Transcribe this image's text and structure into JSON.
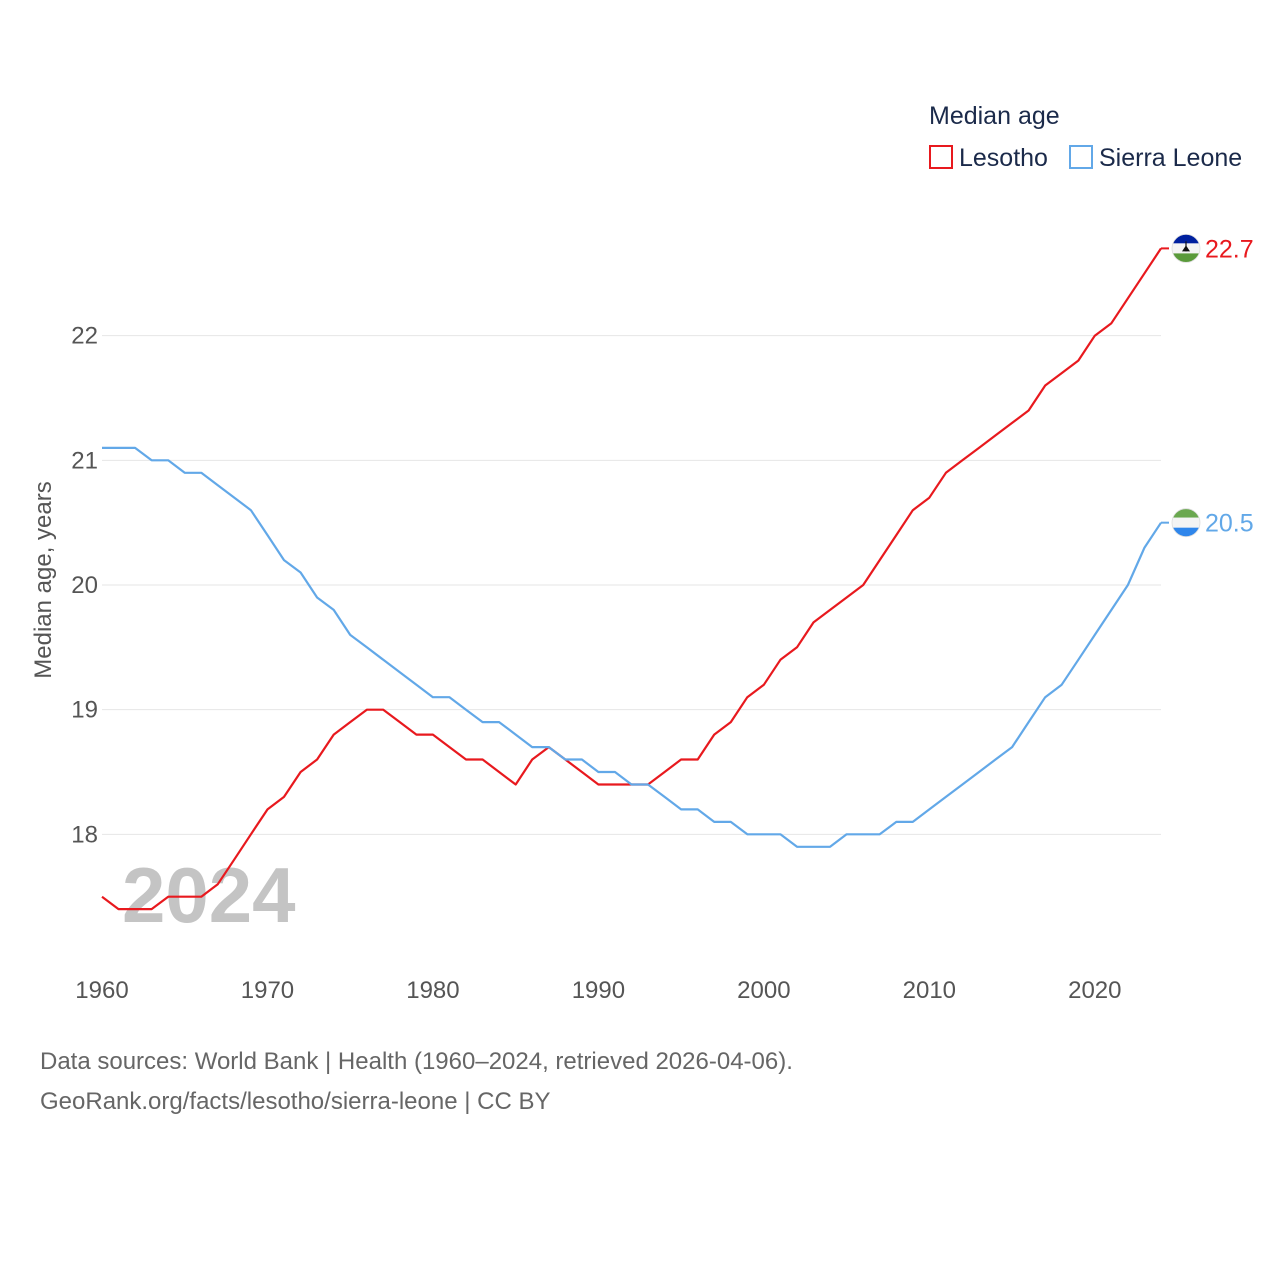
{
  "colors": {
    "lesotho": "#e8191e",
    "sierra_leone": "#62a8e8",
    "grid": "#e6e6e6"
  },
  "watermark_year": "2024",
  "chart_data": {
    "type": "line",
    "title": "Median age",
    "xlabel": "",
    "ylabel": "Median age, years",
    "xlim": [
      1960,
      2024
    ],
    "ylim": [
      17,
      23
    ],
    "x_ticks": [
      1960,
      1970,
      1980,
      1990,
      2000,
      2010,
      2020
    ],
    "y_ticks": [
      18,
      19,
      20,
      21,
      22
    ],
    "legend": {
      "title": "Median age",
      "position": "top-right"
    },
    "x": [
      1960,
      1961,
      1962,
      1963,
      1964,
      1965,
      1966,
      1967,
      1968,
      1969,
      1970,
      1971,
      1972,
      1973,
      1974,
      1975,
      1976,
      1977,
      1978,
      1979,
      1980,
      1981,
      1982,
      1983,
      1984,
      1985,
      1986,
      1987,
      1988,
      1989,
      1990,
      1991,
      1992,
      1993,
      1994,
      1995,
      1996,
      1997,
      1998,
      1999,
      2000,
      2001,
      2002,
      2003,
      2004,
      2005,
      2006,
      2007,
      2008,
      2009,
      2010,
      2011,
      2012,
      2013,
      2014,
      2015,
      2016,
      2017,
      2018,
      2019,
      2020,
      2021,
      2022,
      2023,
      2024
    ],
    "series": [
      {
        "name": "Lesotho",
        "color": "#e8191e",
        "flag": "lesotho-flag",
        "end_label": "22.7",
        "values": [
          17.5,
          17.4,
          17.4,
          17.4,
          17.5,
          17.5,
          17.5,
          17.6,
          17.8,
          18.0,
          18.2,
          18.3,
          18.5,
          18.6,
          18.8,
          18.9,
          19.0,
          19.0,
          18.9,
          18.8,
          18.8,
          18.7,
          18.6,
          18.6,
          18.5,
          18.4,
          18.6,
          18.7,
          18.6,
          18.5,
          18.4,
          18.4,
          18.4,
          18.4,
          18.5,
          18.6,
          18.6,
          18.8,
          18.9,
          19.1,
          19.2,
          19.4,
          19.5,
          19.7,
          19.8,
          19.9,
          20.0,
          20.2,
          20.4,
          20.6,
          20.7,
          20.9,
          21.0,
          21.1,
          21.2,
          21.3,
          21.4,
          21.6,
          21.7,
          21.8,
          22.0,
          22.1,
          22.3,
          22.5,
          22.7
        ]
      },
      {
        "name": "Sierra Leone",
        "color": "#62a8e8",
        "flag": "sierra-leone-flag",
        "end_label": "20.5",
        "values": [
          21.1,
          21.1,
          21.1,
          21.0,
          21.0,
          20.9,
          20.9,
          20.8,
          20.7,
          20.6,
          20.4,
          20.2,
          20.1,
          19.9,
          19.8,
          19.6,
          19.5,
          19.4,
          19.3,
          19.2,
          19.1,
          19.1,
          19.0,
          18.9,
          18.9,
          18.8,
          18.7,
          18.7,
          18.6,
          18.6,
          18.5,
          18.5,
          18.4,
          18.4,
          18.3,
          18.2,
          18.2,
          18.1,
          18.1,
          18.0,
          18.0,
          18.0,
          17.9,
          17.9,
          17.9,
          18.0,
          18.0,
          18.0,
          18.1,
          18.1,
          18.2,
          18.3,
          18.4,
          18.5,
          18.6,
          18.7,
          18.9,
          19.1,
          19.2,
          19.4,
          19.6,
          19.8,
          20.0,
          20.3,
          20.5
        ]
      }
    ]
  },
  "source": {
    "line1": "Data sources: World Bank | Health (1960–2024, retrieved 2026-04-06).",
    "line2": "GeoRank.org/facts/lesotho/sierra-leone | CC BY"
  }
}
